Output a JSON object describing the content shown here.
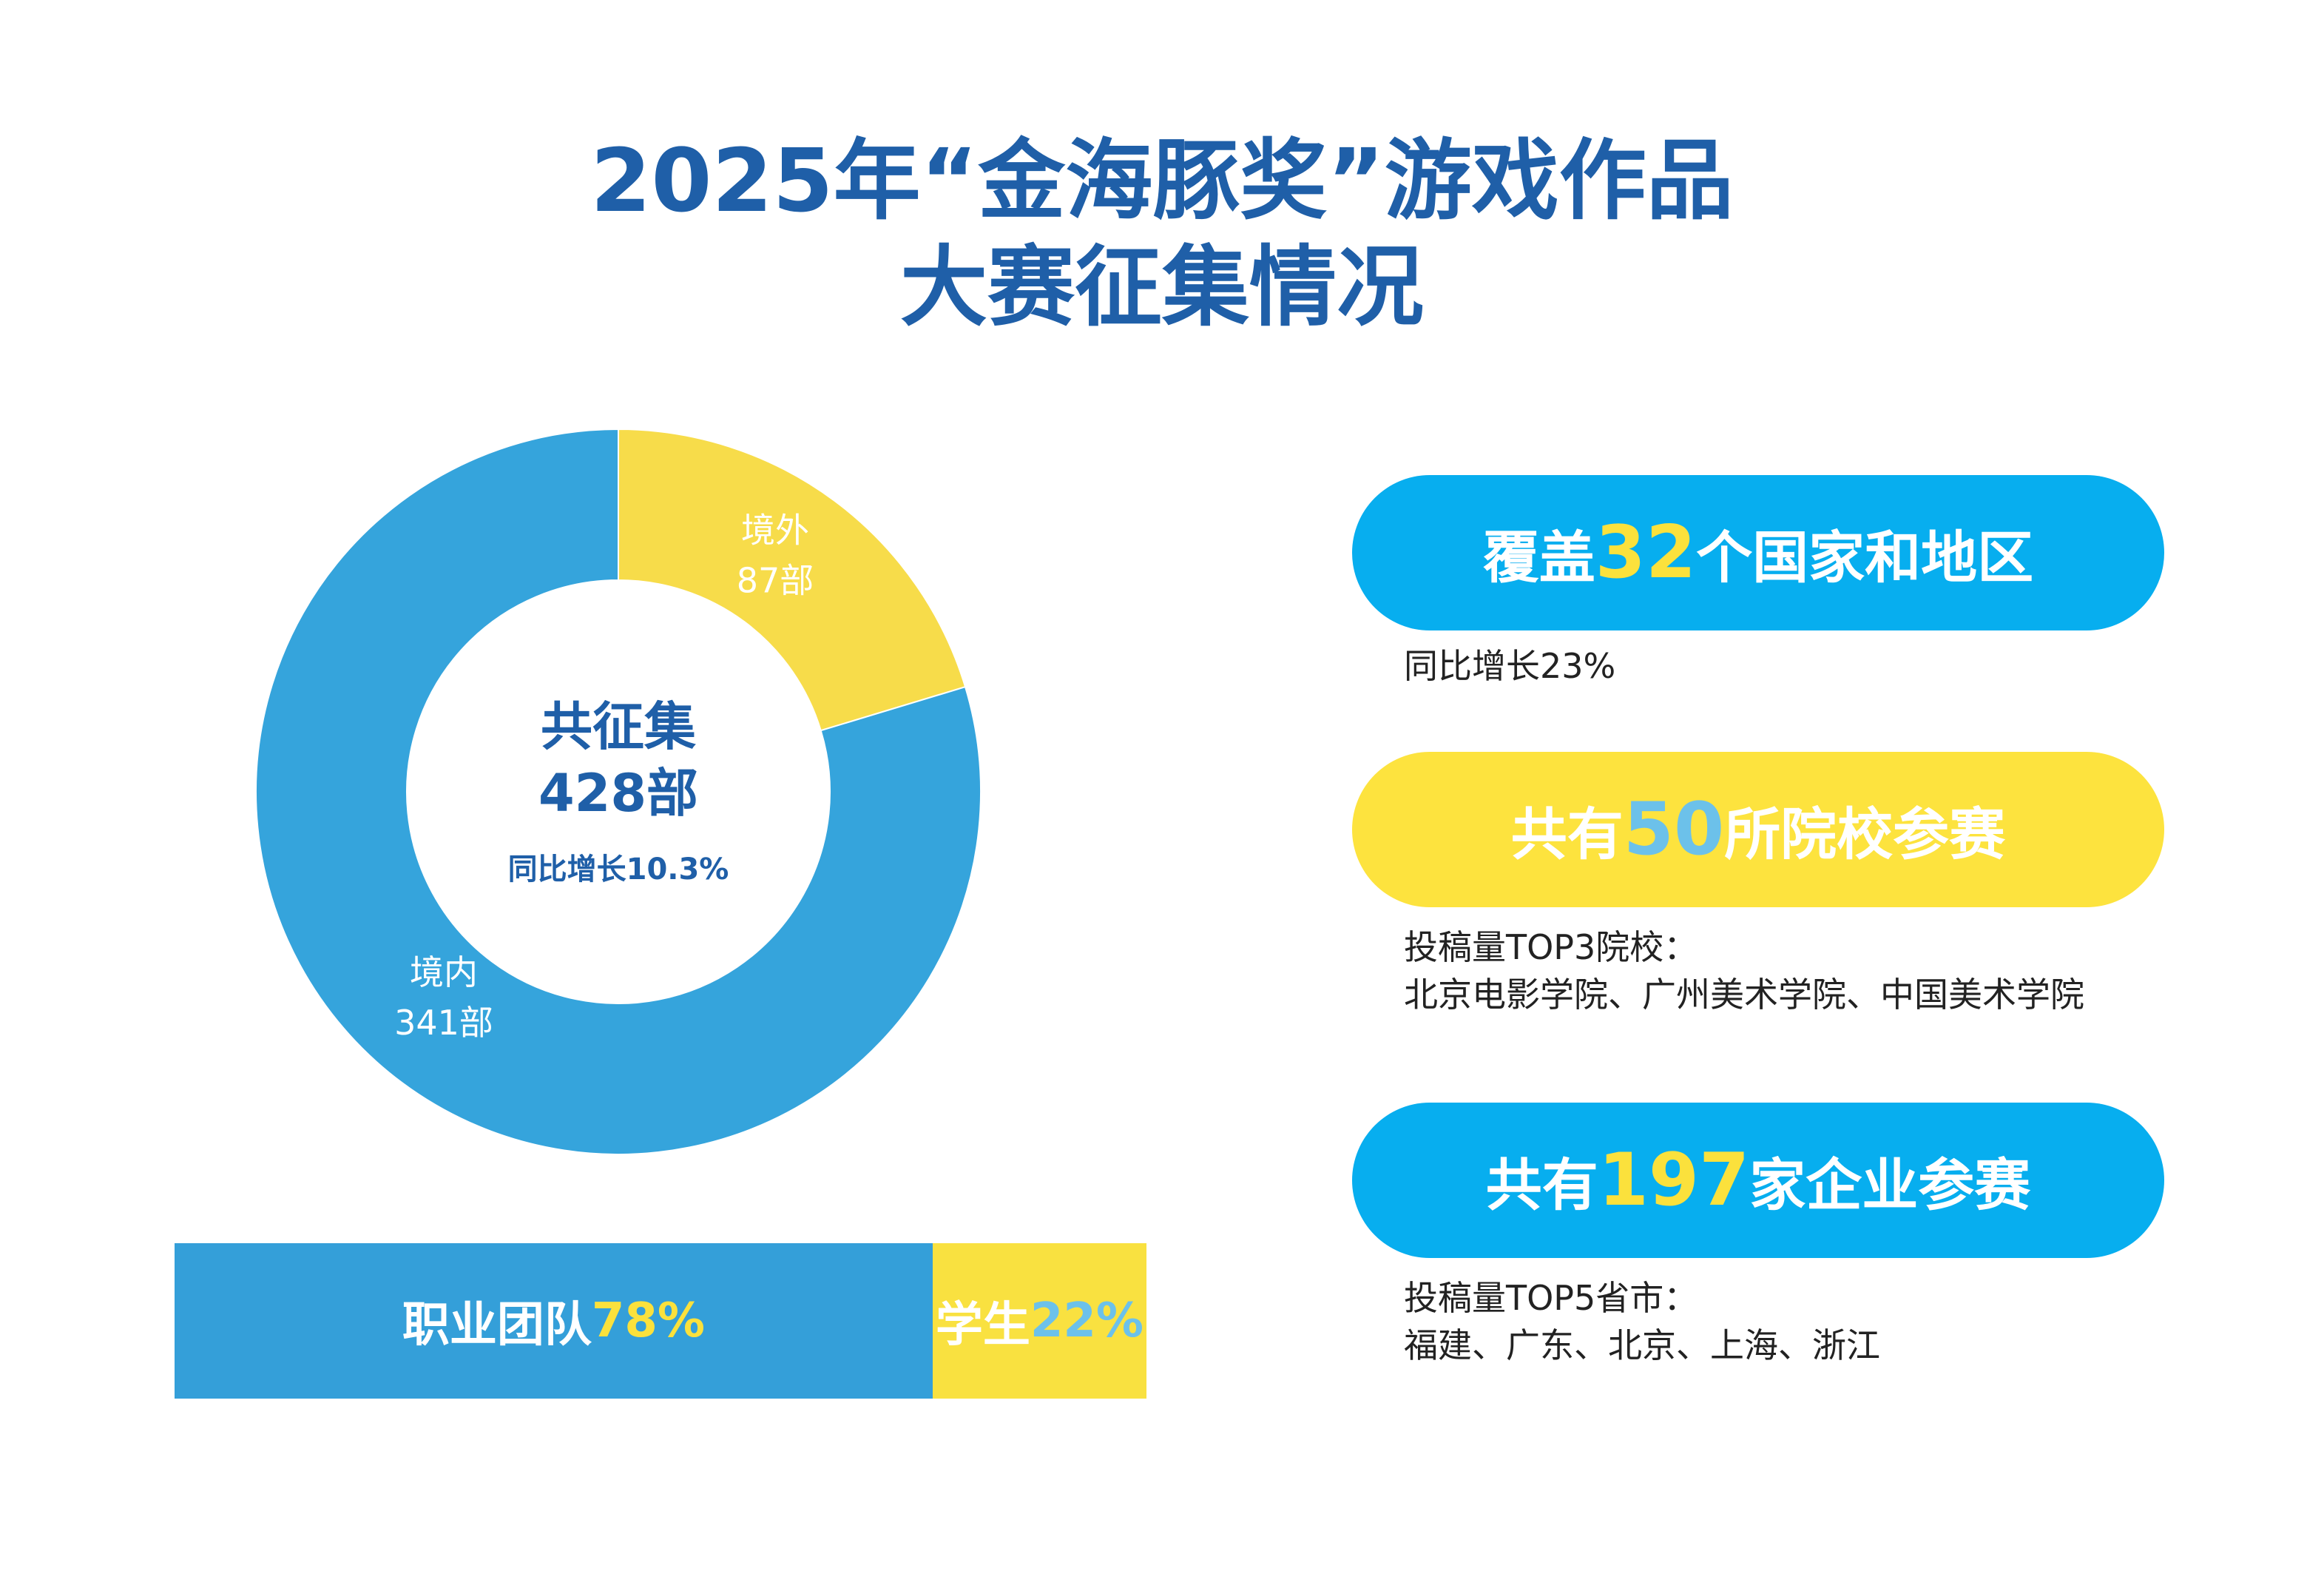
{
  "title": {
    "line1": "2025年“金海豚奖”游戏作品",
    "line2": "大赛征集情况"
  },
  "colors": {
    "title": "#1f5fa8",
    "donut_blue": "#35a4dc",
    "donut_yellow": "#f7dc4a",
    "pill_blue": "#07aeef",
    "pill_yellow": "#fde33e",
    "stack_blue": "#349fd9",
    "stack_yellow": "#f9e140",
    "accent_yellow_text": "#fbe13c",
    "accent_blue_text": "#6cc1ea"
  },
  "chart_data": [
    {
      "type": "pie",
      "subtype": "donut",
      "slices": [
        {
          "label": "境外",
          "value_label": "87部",
          "value": 87,
          "color": "#f7dc4a"
        },
        {
          "label": "境内",
          "value_label": "341部",
          "value": 341,
          "color": "#35a4dc"
        }
      ],
      "center": {
        "title": "共征集",
        "total": "428部",
        "growth": "同比增长10.3%"
      }
    },
    {
      "type": "bar",
      "subtype": "100%-stacked-horizontal",
      "segments": [
        {
          "label": "职业团队",
          "percent_label": "78%",
          "value": 78,
          "color": "#349fd9"
        },
        {
          "label": "学生",
          "percent_label": "22%",
          "value": 22,
          "color": "#f9e140"
        }
      ]
    }
  ],
  "stats": [
    {
      "prefix": "覆盖",
      "number": "32",
      "suffix": "个国家和地区",
      "note_lines": [
        "同比增长23%"
      ]
    },
    {
      "prefix": "共有",
      "number": "50",
      "suffix": "所院校参赛",
      "note_lines": [
        "投稿量TOP3院校：",
        "北京电影学院、广州美术学院、中国美术学院"
      ]
    },
    {
      "prefix": "共有",
      "number": "197",
      "suffix": "家企业参赛",
      "note_lines": [
        "投稿量TOP5省市：",
        "福建、广东、北京、上海、浙江"
      ]
    }
  ]
}
